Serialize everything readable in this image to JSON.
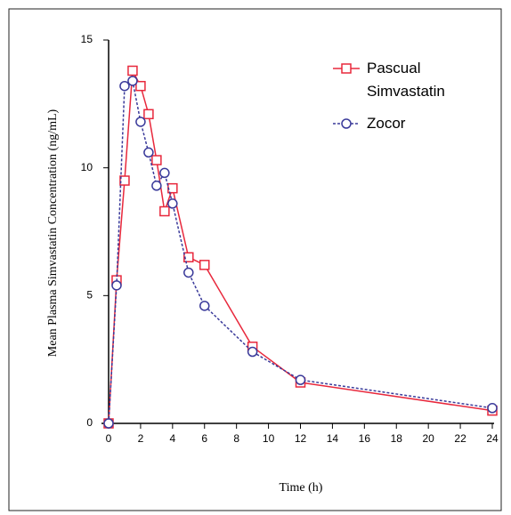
{
  "chart_data": {
    "type": "line",
    "x_label": "Time (h)",
    "y_label": "Mean Plasma Simvastatin Concentration (ng/mL)",
    "x": [
      0,
      0.5,
      1,
      1.5,
      2,
      2.5,
      3,
      3.5,
      4,
      5,
      6,
      9,
      12,
      24
    ],
    "series": [
      {
        "name": "Pascual Simvastatin",
        "color": "#e8283c",
        "marker": "square",
        "dash": false,
        "values": [
          0,
          5.6,
          9.5,
          13.8,
          13.2,
          12.1,
          10.3,
          8.3,
          9.2,
          6.5,
          6.2,
          3.0,
          1.6,
          0.5
        ]
      },
      {
        "name": "Zocor",
        "color": "#3a3a9a",
        "marker": "circle",
        "dash": true,
        "values": [
          0,
          5.4,
          13.2,
          13.4,
          11.8,
          10.6,
          9.3,
          9.8,
          8.6,
          5.9,
          4.6,
          2.8,
          1.7,
          0.6
        ]
      }
    ],
    "xlim": [
      0,
      24
    ],
    "xticks": [
      0,
      2,
      4,
      6,
      8,
      10,
      12,
      14,
      16,
      18,
      20,
      22,
      24
    ],
    "ylim": [
      0,
      15
    ],
    "yticks": [
      0,
      5,
      10,
      15
    ],
    "grid": false,
    "legend": "upper right"
  }
}
